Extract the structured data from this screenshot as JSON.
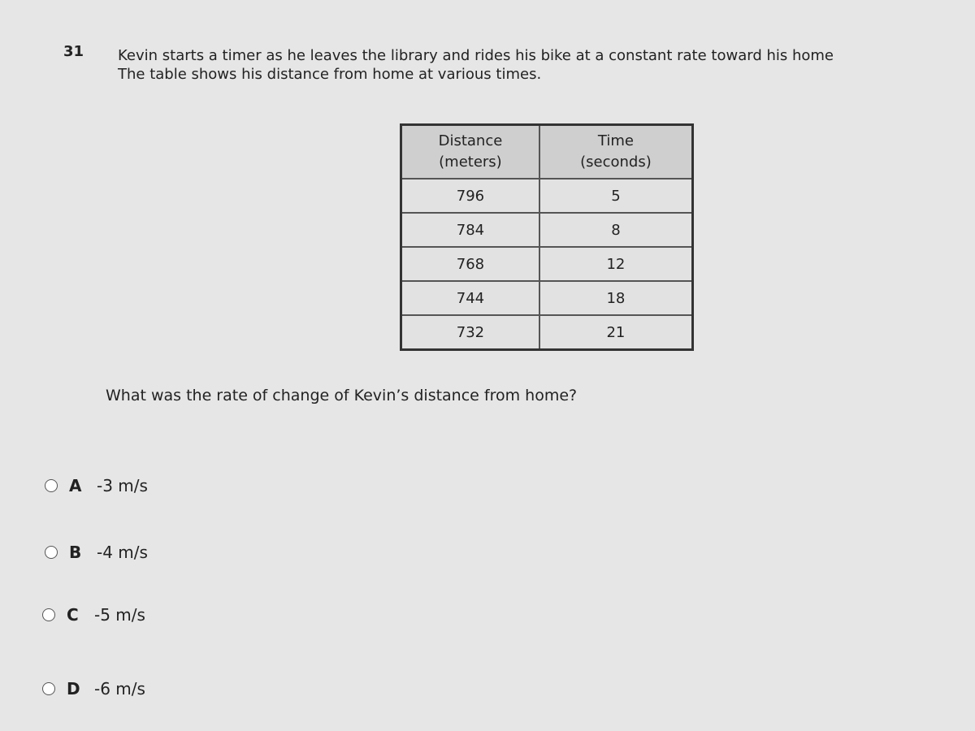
{
  "question": {
    "number": "31",
    "lines": [
      "Kevin starts a timer as he leaves the library and rides his bike at a constant rate toward his home",
      "The table shows his distance from home at various times."
    ]
  },
  "table": {
    "header": [
      [
        "Distance",
        "(meters)"
      ],
      [
        "Time",
        "(seconds)"
      ]
    ],
    "rows": [
      [
        796,
        5
      ],
      [
        784,
        8
      ],
      [
        768,
        12
      ],
      [
        744,
        18
      ],
      [
        732,
        21
      ]
    ]
  },
  "prompt": "What was the rate of change of Kevin’s distance from home?",
  "choices": [
    {
      "letter": "A",
      "text": "-3 m/s"
    },
    {
      "letter": "B",
      "text": "-4 m/s"
    },
    {
      "letter": "C",
      "text": "-5 m/s"
    },
    {
      "letter": "D",
      "text": "-6 m/s"
    }
  ]
}
